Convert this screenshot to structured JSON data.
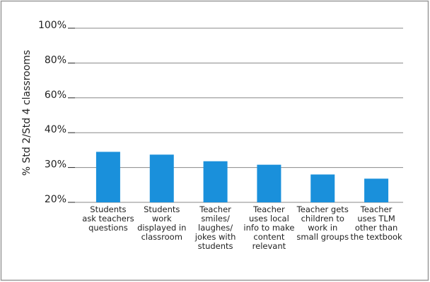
{
  "chart_data": {
    "type": "bar",
    "ylabel": "% Std 2/Std 4 classrooms",
    "categories": [
      "Students ask teachers questions",
      "Students work displayed in classroom",
      "Teacher smiles/ laughes/ jokes with students",
      "Teacher uses local info to make content relevant",
      "Teacher gets children to work in small groups",
      "Teacher uses TLM other than the textbook"
    ],
    "values": [
      34.5,
      33.7,
      31.8,
      30.8,
      28,
      26.8
    ],
    "color": "#1a90db",
    "ylim": [
      20,
      100
    ],
    "yticks": [
      {
        "value": 20,
        "label": "20%"
      },
      {
        "value": 30,
        "label": "30%"
      },
      {
        "value": 40,
        "label": "40%"
      },
      {
        "value": 60,
        "label": "60%"
      },
      {
        "value": 80,
        "label": "80%"
      },
      {
        "value": 100,
        "label": "100%"
      }
    ],
    "grid": true
  }
}
